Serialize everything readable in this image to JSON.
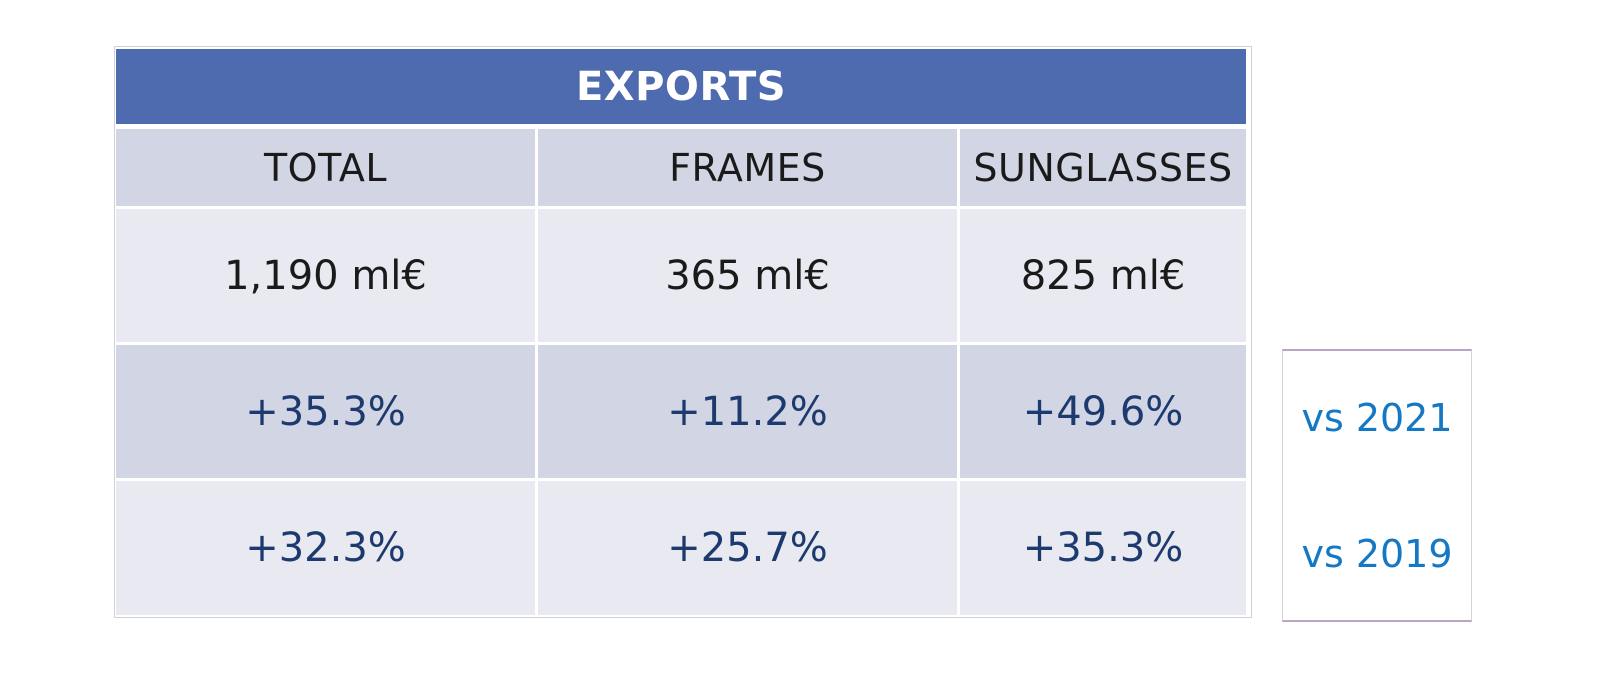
{
  "table": {
    "title": "EXPORTS",
    "columns": [
      "TOTAL",
      "FRAMES",
      "SUNGLASSES"
    ],
    "values_row": [
      "1,190 ml€",
      "365 ml€",
      "825 ml€"
    ],
    "vs_2021_row": [
      "+35.3%",
      "+11.2%",
      "+49.6%"
    ],
    "vs_2019_row": [
      "+32.3%",
      "+25.7%",
      "+35.3%"
    ]
  },
  "comparison": {
    "label_2021": "vs 2021",
    "label_2019": "vs 2019"
  },
  "colors": {
    "header_bg": "#4f6baf",
    "dark_row": "#d2d5e4",
    "light_row": "#e9eaf1",
    "percent_text": "#1d3a6e",
    "comparison_text": "#1478c4"
  }
}
